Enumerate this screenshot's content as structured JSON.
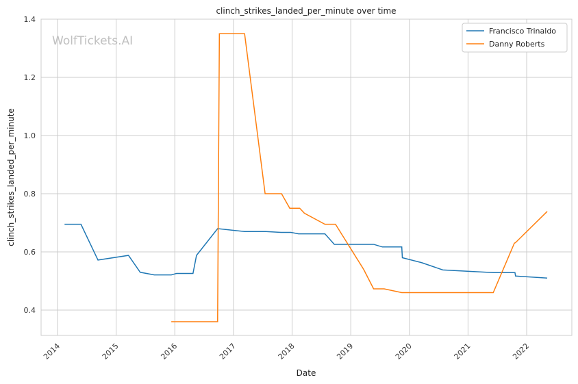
{
  "chart_data": {
    "type": "line",
    "title": "clinch_strikes_landed_per_minute over time",
    "xlabel": "Date",
    "ylabel": "clinch_strikes_landed_per_minute",
    "watermark": "WolfTickets.AI",
    "xlim": [
      2013.72,
      2022.77
    ],
    "ylim": [
      0.313,
      1.4
    ],
    "xticks": [
      2014,
      2015,
      2016,
      2017,
      2018,
      2019,
      2020,
      2021,
      2022
    ],
    "xtick_labels": [
      "2014",
      "2015",
      "2016",
      "2017",
      "2018",
      "2019",
      "2020",
      "2021",
      "2022"
    ],
    "yticks": [
      0.4,
      0.6,
      0.8,
      1.0,
      1.2,
      1.4
    ],
    "ytick_labels": [
      "0.4",
      "0.6",
      "0.8",
      "1.0",
      "1.2",
      "1.4"
    ],
    "grid": true,
    "legend_position": "top-right",
    "series": [
      {
        "name": "Francisco Trinaldo",
        "color": "#1f77b4",
        "points": [
          [
            2014.12,
            0.695
          ],
          [
            2014.4,
            0.695
          ],
          [
            2014.69,
            0.572
          ],
          [
            2015.21,
            0.588
          ],
          [
            2015.41,
            0.53
          ],
          [
            2015.65,
            0.521
          ],
          [
            2015.94,
            0.521
          ],
          [
            2016.03,
            0.526
          ],
          [
            2016.31,
            0.526
          ],
          [
            2016.37,
            0.588
          ],
          [
            2016.73,
            0.68
          ],
          [
            2017.19,
            0.67
          ],
          [
            2017.55,
            0.67
          ],
          [
            2017.81,
            0.667
          ],
          [
            2017.98,
            0.667
          ],
          [
            2018.11,
            0.662
          ],
          [
            2018.56,
            0.662
          ],
          [
            2018.72,
            0.626
          ],
          [
            2019.39,
            0.626
          ],
          [
            2019.54,
            0.617
          ],
          [
            2019.87,
            0.617
          ],
          [
            2019.88,
            0.58
          ],
          [
            2020.21,
            0.563
          ],
          [
            2020.57,
            0.538
          ],
          [
            2021.43,
            0.529
          ],
          [
            2021.8,
            0.529
          ],
          [
            2021.81,
            0.517
          ],
          [
            2022.35,
            0.51
          ]
        ]
      },
      {
        "name": "Danny Roberts",
        "color": "#ff7f0e",
        "points": [
          [
            2015.94,
            0.36
          ],
          [
            2016.73,
            0.36
          ],
          [
            2016.76,
            1.35
          ],
          [
            2017.19,
            1.35
          ],
          [
            2017.54,
            0.8
          ],
          [
            2017.82,
            0.8
          ],
          [
            2017.96,
            0.75
          ],
          [
            2018.13,
            0.75
          ],
          [
            2018.21,
            0.733
          ],
          [
            2018.56,
            0.695
          ],
          [
            2018.74,
            0.695
          ],
          [
            2019.22,
            0.54
          ],
          [
            2019.39,
            0.473
          ],
          [
            2019.57,
            0.473
          ],
          [
            2019.87,
            0.46
          ],
          [
            2021.43,
            0.46
          ],
          [
            2021.79,
            0.63
          ],
          [
            2021.81,
            0.632
          ],
          [
            2022.35,
            0.739
          ]
        ]
      }
    ]
  }
}
